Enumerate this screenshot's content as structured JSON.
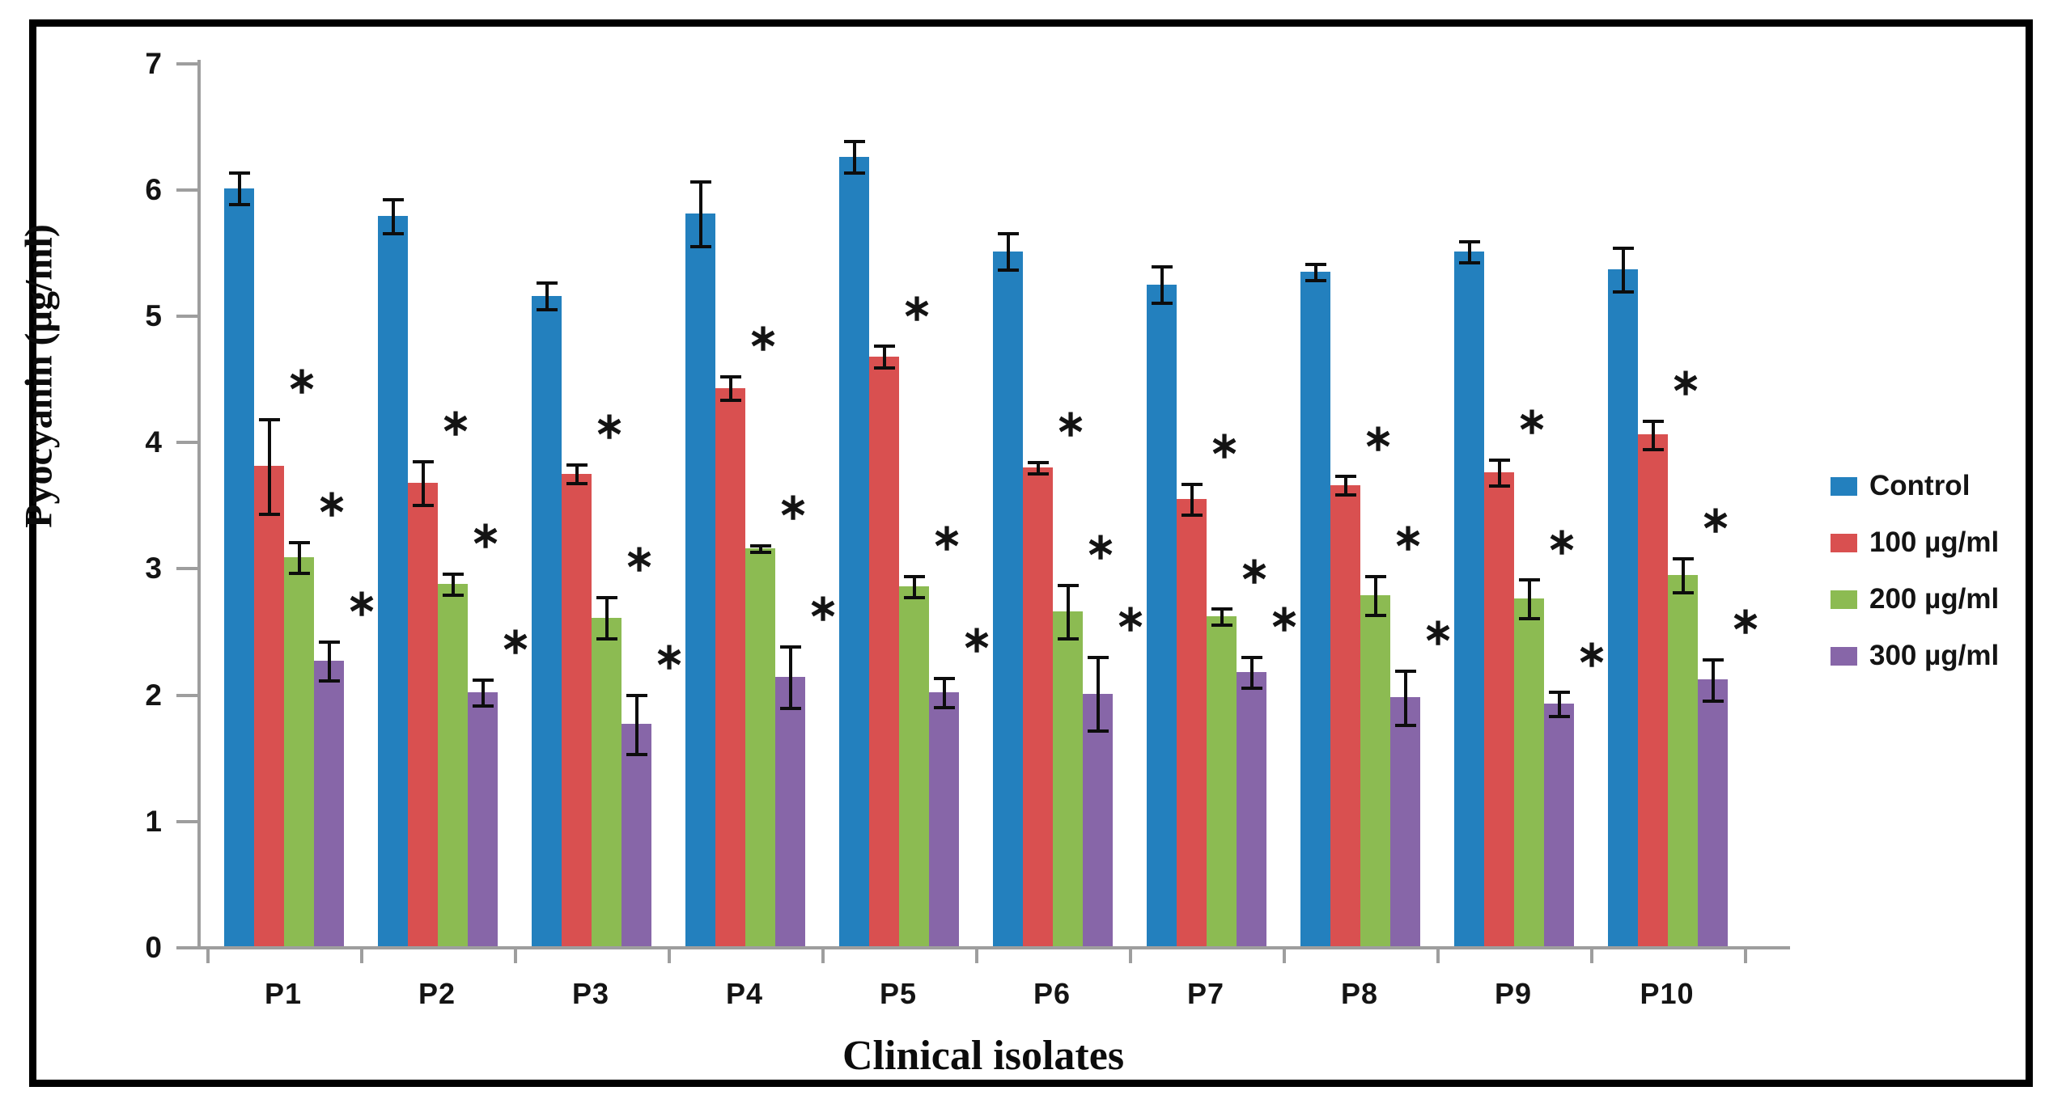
{
  "chart_data": {
    "type": "bar",
    "title": "",
    "xlabel": "Clinical isolates",
    "ylabel": "Pyocyanin (µg/ml)",
    "ylim": [
      0,
      7
    ],
    "yticks": [
      0,
      1,
      2,
      3,
      4,
      5,
      6,
      7
    ],
    "grid": false,
    "error_bars": true,
    "legend_position": "right",
    "significance_marker": "∗",
    "significance_note": "asterisk above error bars of all treated series",
    "categories": [
      "P1",
      "P2",
      "P3",
      "P4",
      "P5",
      "P6",
      "P7",
      "P8",
      "P9",
      "P10"
    ],
    "series": [
      {
        "name": "Control",
        "color": "#2380BE",
        "significant": false,
        "values": [
          6.0,
          5.78,
          5.15,
          5.8,
          6.25,
          5.5,
          5.24,
          5.34,
          5.5,
          5.36
        ],
        "errors": [
          0.13,
          0.14,
          0.11,
          0.26,
          0.13,
          0.15,
          0.15,
          0.07,
          0.09,
          0.18
        ]
      },
      {
        "name": "100 µg/ml",
        "color": "#D95050",
        "significant": true,
        "values": [
          3.8,
          3.67,
          3.74,
          4.42,
          4.67,
          3.79,
          3.54,
          3.65,
          3.75,
          4.05
        ],
        "errors": [
          0.38,
          0.18,
          0.08,
          0.1,
          0.09,
          0.05,
          0.13,
          0.08,
          0.11,
          0.12
        ]
      },
      {
        "name": "200 µg/ml",
        "color": "#8CBB52",
        "significant": true,
        "values": [
          3.08,
          2.87,
          2.6,
          3.15,
          2.85,
          2.65,
          2.61,
          2.78,
          2.75,
          2.94
        ],
        "errors": [
          0.13,
          0.09,
          0.17,
          0.03,
          0.09,
          0.22,
          0.07,
          0.16,
          0.16,
          0.14
        ]
      },
      {
        "name": "300 µg/ml",
        "color": "#8766A8",
        "significant": true,
        "values": [
          2.26,
          2.01,
          1.76,
          2.13,
          2.01,
          2.0,
          2.17,
          1.97,
          1.92,
          2.11
        ],
        "errors": [
          0.16,
          0.11,
          0.24,
          0.25,
          0.12,
          0.3,
          0.13,
          0.22,
          0.1,
          0.17
        ]
      }
    ]
  },
  "colors": {
    "axis": "#9e9e9e",
    "text": "#141414",
    "border": "#000000",
    "background": "#ffffff"
  }
}
